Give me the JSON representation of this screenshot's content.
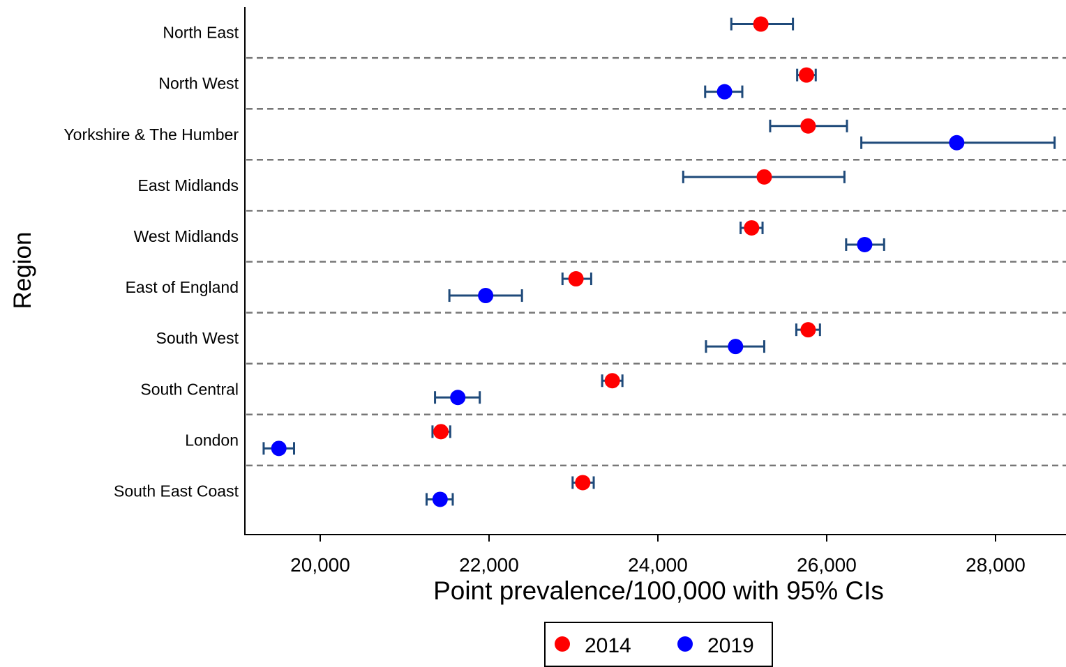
{
  "chart_data": {
    "type": "scatter",
    "subtype": "forest plot with 95% confidence intervals",
    "xlabel": "Point prevalence/100,000 with 95% CIs",
    "ylabel": "Region",
    "xlim": [
      19100,
      28850
    ],
    "xticks": [
      20000,
      22000,
      24000,
      26000,
      28000
    ],
    "xtick_labels": [
      "20,000",
      "22,000",
      "24,000",
      "26,000",
      "28,000"
    ],
    "grid": "dashed separators between regions",
    "legend_position": "bottom-center",
    "series": [
      {
        "name": "2014",
        "color": "#ff0000"
      },
      {
        "name": "2019",
        "color": "#0000ff"
      }
    ],
    "ci_color": "#1f4a7a",
    "regions": [
      {
        "name": "North East",
        "2014": {
          "value": 25220,
          "ci": [
            24870,
            25600
          ]
        },
        "2019": null
      },
      {
        "name": "North West",
        "2014": {
          "value": 25760,
          "ci": [
            25650,
            25870
          ]
        },
        "2019": {
          "value": 24790,
          "ci": [
            24560,
            25000
          ]
        }
      },
      {
        "name": "Yorkshire & The Humber",
        "2014": {
          "value": 25780,
          "ci": [
            25330,
            26240
          ]
        },
        "2019": {
          "value": 27540,
          "ci": [
            26410,
            28700
          ]
        }
      },
      {
        "name": "East Midlands",
        "2014": {
          "value": 25260,
          "ci": [
            24300,
            26210
          ]
        },
        "2019": null
      },
      {
        "name": "West Midlands",
        "2014": {
          "value": 25110,
          "ci": [
            24980,
            25240
          ]
        },
        "2019": {
          "value": 26450,
          "ci": [
            26230,
            26680
          ]
        }
      },
      {
        "name": "East of England",
        "2014": {
          "value": 23030,
          "ci": [
            22870,
            23210
          ]
        },
        "2019": {
          "value": 21960,
          "ci": [
            21530,
            22390
          ]
        }
      },
      {
        "name": "South West",
        "2014": {
          "value": 25780,
          "ci": [
            25640,
            25920
          ]
        },
        "2019": {
          "value": 24920,
          "ci": [
            24570,
            25260
          ]
        }
      },
      {
        "name": "South Central",
        "2014": {
          "value": 23460,
          "ci": [
            23340,
            23580
          ]
        },
        "2019": {
          "value": 21630,
          "ci": [
            21360,
            21890
          ]
        }
      },
      {
        "name": "London",
        "2014": {
          "value": 21430,
          "ci": [
            21330,
            21540
          ]
        },
        "2019": {
          "value": 19510,
          "ci": [
            19330,
            19690
          ]
        }
      },
      {
        "name": "South East Coast",
        "2014": {
          "value": 23110,
          "ci": [
            22990,
            23240
          ]
        },
        "2019": {
          "value": 21420,
          "ci": [
            21260,
            21570
          ]
        }
      }
    ]
  }
}
